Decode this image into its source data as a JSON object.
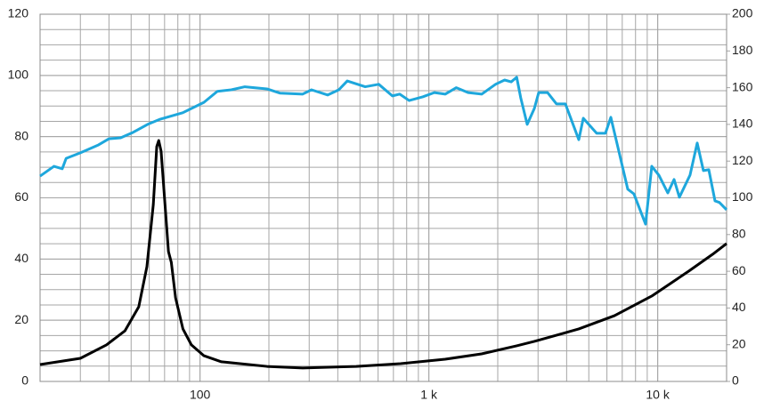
{
  "chart_data": {
    "type": "line",
    "log_x": true,
    "grid": true,
    "y_minor_step": 5,
    "xlim": [
      20,
      20000
    ],
    "xticks": [
      100,
      {
        "value": 1000,
        "label": "1 k"
      },
      {
        "value": 10000,
        "label": "10 k"
      }
    ],
    "ylim": [
      0,
      120
    ],
    "yticks": [
      0,
      20,
      40,
      60,
      80,
      100,
      120
    ],
    "y2lim": [
      0,
      200
    ],
    "y2ticks": [
      0,
      20,
      40,
      60,
      80,
      100,
      120,
      140,
      160,
      180,
      200
    ],
    "series": [
      {
        "color": "#1ea7dc",
        "x": [
          20,
          23,
          25,
          26,
          30,
          36,
          40,
          45,
          51,
          59,
          67,
          84,
          104,
          119,
          137,
          157,
          196,
          224,
          281,
          307,
          361,
          404,
          440,
          527,
          604,
          693,
          746,
          820,
          940,
          1057,
          1180,
          1318,
          1484,
          1704,
          1956,
          2143,
          2290,
          2420,
          2520,
          2690,
          2890,
          3020,
          3300,
          3610,
          3950,
          4520,
          4730,
          5410,
          5910,
          6240,
          6760,
          7400,
          7870,
          8850,
          9420,
          10120,
          11070,
          11790,
          12440,
          13840,
          14880,
          15840,
          16720,
          17800,
          18600,
          20000
        ],
        "values": [
          67.1,
          70.3,
          69.5,
          72.9,
          74.7,
          77.3,
          79.3,
          79.6,
          81.4,
          84.0,
          85.7,
          87.8,
          91.2,
          94.8,
          95.3,
          96.3,
          95.6,
          94.2,
          93.9,
          95.3,
          93.6,
          95.3,
          98.2,
          96.3,
          97.1,
          93.3,
          93.9,
          91.8,
          93.0,
          94.4,
          93.9,
          96.0,
          94.4,
          93.9,
          97.1,
          98.5,
          97.9,
          99.4,
          92.7,
          84.0,
          89.2,
          94.4,
          94.4,
          90.7,
          90.7,
          79.0,
          86.0,
          81.1,
          81.1,
          86.3,
          75.3,
          62.8,
          61.3,
          51.4,
          70.3,
          67.4,
          61.6,
          66.0,
          60.2,
          67.4,
          77.9,
          68.9,
          69.2,
          59.0,
          58.5,
          56.1
        ]
      },
      {
        "color": "#000000",
        "axis": "y2",
        "x": [
          20,
          30,
          39,
          47,
          54,
          58.6,
          62.5,
          64.7,
          66,
          67.6,
          70.3,
          72.8,
          74.9,
          78.2,
          84.2,
          91.7,
          104,
          124,
          196,
          281,
          481,
          752,
          1178,
          1700,
          2420,
          2890,
          4520,
          6470,
          9420,
          13680,
          17400,
          20000
        ],
        "values": [
          9.2,
          12.6,
          19.9,
          27.6,
          40.7,
          62.5,
          96.4,
          127.9,
          131.2,
          125.4,
          96.4,
          70.7,
          64.9,
          45.5,
          28.6,
          19.9,
          14.0,
          10.7,
          8.2,
          7.3,
          8.2,
          9.7,
          12.1,
          15.0,
          19.4,
          21.8,
          28.6,
          35.8,
          46.5,
          60.1,
          69.3,
          75.1
        ]
      }
    ]
  }
}
